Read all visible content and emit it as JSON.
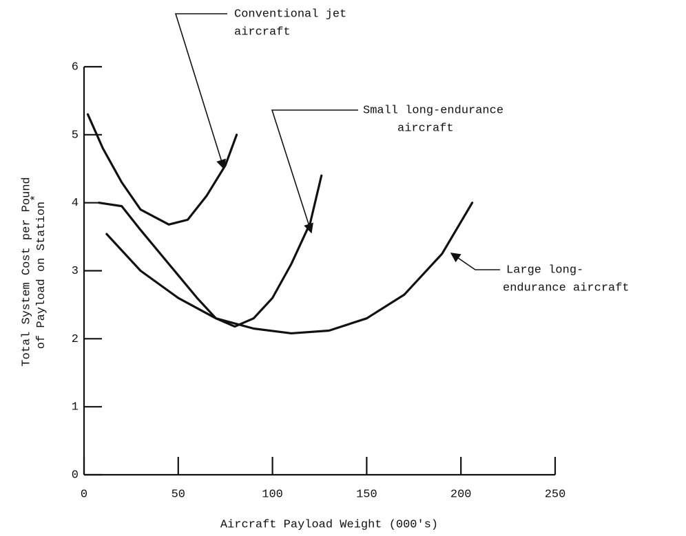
{
  "chart_data": {
    "type": "line",
    "xlabel": "Aircraft Payload Weight (000's)",
    "ylabel": [
      "Total System Cost per Pound",
      "of Payload on Station"
    ],
    "ylabel_note": "*",
    "xlim": [
      0,
      250
    ],
    "xticks": [
      0,
      50,
      100,
      150,
      200,
      250
    ],
    "ylim": [
      0,
      6
    ],
    "yticks": [
      0,
      1,
      2,
      3,
      4,
      5,
      6
    ],
    "color": "#111111",
    "series": [
      {
        "label_lines": [
          "Conventional jet",
          "aircraft"
        ],
        "x": [
          2,
          10,
          20,
          30,
          45,
          55,
          65,
          75,
          81
        ],
        "values": [
          5.3,
          4.8,
          4.3,
          3.9,
          3.68,
          3.75,
          4.1,
          4.55,
          5.0
        ]
      },
      {
        "label_lines": [
          "Small long-endurance",
          "aircraft"
        ],
        "x": [
          8,
          20,
          30,
          45,
          60,
          70,
          80,
          90,
          100,
          110,
          120,
          126
        ],
        "values": [
          4.0,
          3.95,
          3.6,
          3.1,
          2.6,
          2.3,
          2.18,
          2.3,
          2.6,
          3.1,
          3.7,
          4.4
        ]
      },
      {
        "label_lines": [
          "Large long-",
          "endurance aircraft"
        ],
        "x": [
          12,
          30,
          50,
          70,
          90,
          110,
          130,
          150,
          170,
          190,
          206
        ],
        "values": [
          3.54,
          3.0,
          2.6,
          2.3,
          2.15,
          2.08,
          2.12,
          2.3,
          2.65,
          3.25,
          4.0
        ]
      }
    ]
  }
}
